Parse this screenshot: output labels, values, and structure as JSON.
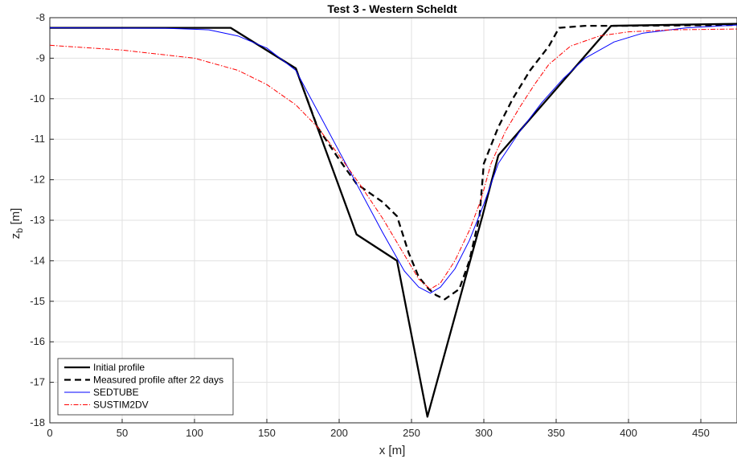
{
  "chart_data": {
    "type": "line",
    "title": "Test 3 - Western Scheldt",
    "xlabel": "x [m]",
    "ylabel_main": "z",
    "ylabel_sub": "b",
    "ylabel_unit": " [m]",
    "xlim": [
      0,
      475
    ],
    "ylim": [
      -18,
      -8
    ],
    "xticks": [
      0,
      50,
      100,
      150,
      200,
      250,
      300,
      350,
      400,
      450
    ],
    "yticks": [
      -18,
      -17,
      -16,
      -15,
      -14,
      -13,
      -12,
      -11,
      -10,
      -9,
      -8
    ],
    "grid": true,
    "legend_location": "bottom-left",
    "series": [
      {
        "name": "Initial profile",
        "color": "#000000",
        "style": "solid-thick",
        "points": [
          [
            0,
            -8.25
          ],
          [
            125,
            -8.25
          ],
          [
            170,
            -9.25
          ],
          [
            212,
            -13.35
          ],
          [
            240,
            -14.0
          ],
          [
            261,
            -17.85
          ],
          [
            299,
            -12.9
          ],
          [
            310,
            -11.4
          ],
          [
            388,
            -8.2
          ],
          [
            475,
            -8.15
          ]
        ]
      },
      {
        "name": "Measured profile after 22 days",
        "color": "#000000",
        "style": "dashed-thick",
        "points": [
          [
            170,
            -9.25
          ],
          [
            185,
            -10.7
          ],
          [
            200,
            -11.5
          ],
          [
            212,
            -12.1
          ],
          [
            230,
            -12.55
          ],
          [
            240,
            -12.9
          ],
          [
            248,
            -13.8
          ],
          [
            255,
            -14.4
          ],
          [
            262,
            -14.7
          ],
          [
            267,
            -14.85
          ],
          [
            273,
            -14.95
          ],
          [
            283,
            -14.7
          ],
          [
            290,
            -14.0
          ],
          [
            297,
            -12.9
          ],
          [
            300,
            -11.6
          ],
          [
            310,
            -10.7
          ],
          [
            320,
            -10.0
          ],
          [
            332,
            -9.3
          ],
          [
            345,
            -8.7
          ],
          [
            352,
            -8.25
          ],
          [
            370,
            -8.2
          ],
          [
            400,
            -8.2
          ],
          [
            475,
            -8.18
          ]
        ]
      },
      {
        "name": "SEDTUBE",
        "color": "#0000ff",
        "style": "solid-thin",
        "points": [
          [
            0,
            -8.25
          ],
          [
            80,
            -8.26
          ],
          [
            110,
            -8.3
          ],
          [
            130,
            -8.45
          ],
          [
            150,
            -8.75
          ],
          [
            170,
            -9.3
          ],
          [
            185,
            -10.3
          ],
          [
            200,
            -11.3
          ],
          [
            215,
            -12.3
          ],
          [
            230,
            -13.3
          ],
          [
            245,
            -14.25
          ],
          [
            255,
            -14.65
          ],
          [
            263,
            -14.8
          ],
          [
            270,
            -14.65
          ],
          [
            280,
            -14.2
          ],
          [
            290,
            -13.5
          ],
          [
            300,
            -12.6
          ],
          [
            310,
            -11.6
          ],
          [
            325,
            -10.8
          ],
          [
            340,
            -10.1
          ],
          [
            355,
            -9.5
          ],
          [
            370,
            -9.0
          ],
          [
            390,
            -8.6
          ],
          [
            410,
            -8.38
          ],
          [
            440,
            -8.25
          ],
          [
            475,
            -8.18
          ]
        ]
      },
      {
        "name": "SUSTIM2DV",
        "color": "#ff0000",
        "style": "dashdot-thin",
        "points": [
          [
            0,
            -8.68
          ],
          [
            50,
            -8.8
          ],
          [
            100,
            -9.0
          ],
          [
            130,
            -9.3
          ],
          [
            150,
            -9.65
          ],
          [
            170,
            -10.15
          ],
          [
            185,
            -10.7
          ],
          [
            200,
            -11.4
          ],
          [
            215,
            -12.15
          ],
          [
            230,
            -12.95
          ],
          [
            245,
            -13.85
          ],
          [
            255,
            -14.45
          ],
          [
            263,
            -14.7
          ],
          [
            270,
            -14.55
          ],
          [
            280,
            -14.0
          ],
          [
            290,
            -13.25
          ],
          [
            298,
            -12.5
          ],
          [
            305,
            -11.6
          ],
          [
            315,
            -10.8
          ],
          [
            325,
            -10.2
          ],
          [
            335,
            -9.65
          ],
          [
            345,
            -9.15
          ],
          [
            360,
            -8.7
          ],
          [
            380,
            -8.45
          ],
          [
            400,
            -8.35
          ],
          [
            430,
            -8.3
          ],
          [
            475,
            -8.28
          ]
        ]
      }
    ]
  }
}
